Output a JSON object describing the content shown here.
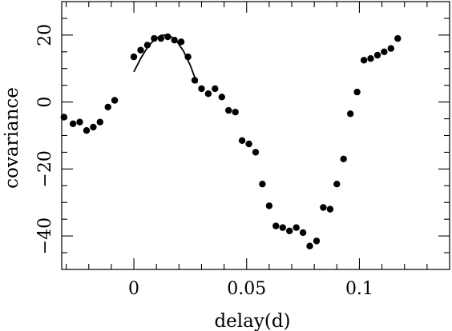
{
  "chart_data": {
    "type": "scatter",
    "xlabel": "delay(d)",
    "ylabel": "covariance",
    "xlim": [
      -0.032,
      0.14
    ],
    "ylim": [
      -50,
      30
    ],
    "xticks_major": [
      0,
      0.05,
      0.1
    ],
    "xtick_labels": [
      "0",
      "0.05",
      "0.1"
    ],
    "xticks_minor": [
      -0.03,
      -0.02,
      -0.01,
      0.01,
      0.02,
      0.03,
      0.04,
      0.06,
      0.07,
      0.08,
      0.09,
      0.11,
      0.12,
      0.13
    ],
    "yticks": [
      -40,
      -20,
      0,
      20
    ],
    "ytick_labels": [
      "−40",
      "−20",
      "0",
      "20"
    ],
    "grid": false,
    "series": [
      {
        "values": [
          [
            -0.031,
            -4.5
          ],
          [
            -0.027,
            -6.5
          ],
          [
            -0.024,
            -6.0
          ],
          [
            -0.021,
            -8.5
          ],
          [
            -0.018,
            -7.5
          ],
          [
            -0.015,
            -6.0
          ],
          [
            -0.0115,
            -1.5
          ],
          [
            -0.0085,
            0.5
          ],
          [
            0.0,
            13.5
          ],
          [
            0.003,
            15.5
          ],
          [
            0.006,
            17.0
          ],
          [
            0.009,
            19.0
          ],
          [
            0.012,
            19.0
          ],
          [
            0.015,
            19.5
          ],
          [
            0.018,
            18.5
          ],
          [
            0.021,
            18.0
          ],
          [
            0.024,
            13.5
          ],
          [
            0.027,
            6.5
          ],
          [
            0.03,
            4.0
          ],
          [
            0.033,
            2.5
          ],
          [
            0.036,
            4.0
          ],
          [
            0.039,
            1.5
          ],
          [
            0.042,
            -2.5
          ],
          [
            0.045,
            -3.0
          ],
          [
            0.048,
            -11.5
          ],
          [
            0.051,
            -12.5
          ],
          [
            0.054,
            -15.0
          ],
          [
            0.057,
            -24.5
          ],
          [
            0.06,
            -31.0
          ],
          [
            0.063,
            -37.0
          ],
          [
            0.066,
            -37.5
          ],
          [
            0.069,
            -38.5
          ],
          [
            0.072,
            -37.5
          ],
          [
            0.075,
            -39.0
          ],
          [
            0.078,
            -43.0
          ],
          [
            0.081,
            -41.5
          ],
          [
            0.084,
            -31.5
          ],
          [
            0.087,
            -32.0
          ],
          [
            0.09,
            -24.5
          ],
          [
            0.093,
            -17.0
          ],
          [
            0.096,
            -3.5
          ],
          [
            0.099,
            3.0
          ],
          [
            0.102,
            12.5
          ],
          [
            0.105,
            13.0
          ],
          [
            0.108,
            14.0
          ],
          [
            0.111,
            15.0
          ],
          [
            0.114,
            16.0
          ],
          [
            0.117,
            19.0
          ]
        ]
      }
    ],
    "fit_curve": {
      "points": [
        [
          0.0,
          9.0
        ],
        [
          0.003,
          13.0
        ],
        [
          0.006,
          16.3
        ],
        [
          0.009,
          18.6
        ],
        [
          0.012,
          19.9
        ],
        [
          0.014,
          20.0
        ],
        [
          0.016,
          19.7
        ],
        [
          0.019,
          18.2
        ],
        [
          0.022,
          15.2
        ],
        [
          0.025,
          11.0
        ],
        [
          0.028,
          5.6
        ]
      ]
    }
  }
}
